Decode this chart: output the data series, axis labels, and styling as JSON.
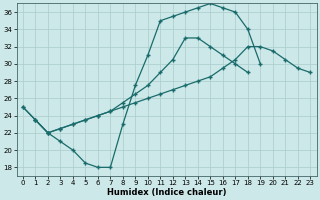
{
  "xlabel": "Humidex (Indice chaleur)",
  "bg_color": "#cce8e8",
  "grid_color": "#aacccc",
  "line_color": "#1a6b6b",
  "xlim": [
    -0.5,
    23.5
  ],
  "ylim": [
    17,
    37
  ],
  "xticks": [
    0,
    1,
    2,
    3,
    4,
    5,
    6,
    7,
    8,
    9,
    10,
    11,
    12,
    13,
    14,
    15,
    16,
    17,
    18,
    19,
    20,
    21,
    22,
    23
  ],
  "yticks": [
    18,
    20,
    22,
    24,
    26,
    28,
    30,
    32,
    34,
    36
  ],
  "curve1_x": [
    0,
    1,
    2,
    3,
    4,
    5,
    6,
    7,
    8,
    9,
    10,
    11,
    12,
    13,
    14,
    15,
    16,
    17,
    18,
    19
  ],
  "curve1_y": [
    25,
    23.5,
    22,
    21,
    20,
    18.5,
    18,
    18,
    23,
    27.5,
    31,
    35,
    35.5,
    36,
    36.5,
    37,
    36.5,
    36,
    34,
    30
  ],
  "curve2_x": [
    0,
    1,
    2,
    3,
    4,
    5,
    6,
    7,
    8,
    9,
    10,
    11,
    12,
    13,
    14,
    15,
    16,
    17,
    18,
    19,
    20,
    21,
    22,
    23
  ],
  "curve2_y": [
    25,
    23.5,
    22,
    22.5,
    23,
    23.5,
    24,
    24.5,
    25,
    25.5,
    26,
    26.5,
    27,
    27.5,
    28,
    28.5,
    29.5,
    30.5,
    32,
    32,
    31.5,
    30.5,
    29.5,
    29
  ],
  "curve3_x": [
    1,
    2,
    3,
    4,
    5,
    6,
    7,
    8,
    9,
    10,
    11,
    12,
    13,
    14,
    15,
    16,
    17,
    18,
    19,
    20,
    21,
    22,
    23
  ],
  "curve3_y": [
    23.5,
    22,
    22.5,
    23,
    23.5,
    24,
    24.5,
    25.5,
    26.5,
    27.5,
    29,
    30.5,
    33,
    33,
    32,
    31,
    30,
    29,
    null,
    null,
    null,
    null,
    null
  ]
}
